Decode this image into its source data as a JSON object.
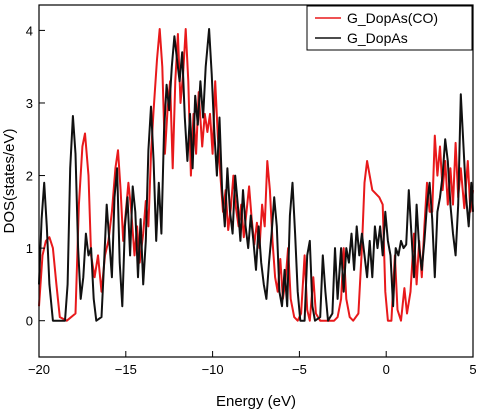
{
  "chart_data": {
    "type": "line",
    "xlabel": "Energy (eV)",
    "ylabel": "DOS(states/eV)",
    "xlim": [
      -20,
      5
    ],
    "ylim": [
      -0.5,
      4.35
    ],
    "xticks": [
      -20,
      -15,
      -10,
      -5,
      0,
      5
    ],
    "yticks": [
      0,
      1,
      2,
      3,
      4
    ],
    "xtick_labels": [
      "−20",
      "−15",
      "−10",
      "−5",
      "0",
      "5"
    ],
    "ytick_labels": [
      "0",
      "1",
      "2",
      "3",
      "4"
    ],
    "legend_position": "top-right",
    "grid": false,
    "series": [
      {
        "name": "G_DopAs(CO)",
        "color": "#e8191b",
        "points": [
          [
            -20,
            0.2
          ],
          [
            -19.8,
            0.9
          ],
          [
            -19.6,
            1.1
          ],
          [
            -19.4,
            1.15
          ],
          [
            -19.2,
            1.0
          ],
          [
            -19.0,
            0.5
          ],
          [
            -18.8,
            0.05
          ],
          [
            -18.4,
            0.0
          ],
          [
            -17.9,
            0.1
          ],
          [
            -17.7,
            1.6
          ],
          [
            -17.5,
            2.4
          ],
          [
            -17.35,
            2.58
          ],
          [
            -17.15,
            2.0
          ],
          [
            -17.0,
            0.9
          ],
          [
            -16.8,
            0.6
          ],
          [
            -16.6,
            0.9
          ],
          [
            -16.4,
            0.4
          ],
          [
            -16.2,
            0.9
          ],
          [
            -16.0,
            1.1
          ],
          [
            -15.8,
            1.5
          ],
          [
            -15.6,
            2.1
          ],
          [
            -15.45,
            2.35
          ],
          [
            -15.3,
            1.8
          ],
          [
            -15.15,
            1.1
          ],
          [
            -15.0,
            1.5
          ],
          [
            -14.85,
            1.9
          ],
          [
            -14.7,
            1.55
          ],
          [
            -14.5,
            0.9
          ],
          [
            -14.35,
            1.3
          ],
          [
            -14.2,
            0.8
          ],
          [
            -14.0,
            1.2
          ],
          [
            -13.85,
            1.65
          ],
          [
            -13.7,
            1.3
          ],
          [
            -13.55,
            2.3
          ],
          [
            -13.4,
            2.9
          ],
          [
            -13.2,
            3.6
          ],
          [
            -13.05,
            4.02
          ],
          [
            -12.9,
            3.5
          ],
          [
            -12.75,
            2.3
          ],
          [
            -12.6,
            2.9
          ],
          [
            -12.45,
            3.3
          ],
          [
            -12.3,
            2.1
          ],
          [
            -12.15,
            3.3
          ],
          [
            -12.0,
            3.95
          ],
          [
            -11.85,
            3.0
          ],
          [
            -11.7,
            3.4
          ],
          [
            -11.55,
            4.02
          ],
          [
            -11.4,
            3.3
          ],
          [
            -11.25,
            2.0
          ],
          [
            -11.1,
            2.85
          ],
          [
            -10.95,
            2.3
          ],
          [
            -10.8,
            3.15
          ],
          [
            -10.6,
            2.4
          ],
          [
            -10.45,
            2.85
          ],
          [
            -10.3,
            2.6
          ],
          [
            -10.15,
            2.85
          ],
          [
            -10.0,
            2.3
          ],
          [
            -9.85,
            3.3
          ],
          [
            -9.7,
            2.55
          ],
          [
            -9.55,
            2.0
          ],
          [
            -9.4,
            1.5
          ],
          [
            -9.25,
            1.8
          ],
          [
            -9.1,
            1.25
          ],
          [
            -8.95,
            1.55
          ],
          [
            -8.8,
            2.0
          ],
          [
            -8.65,
            1.55
          ],
          [
            -8.5,
            1.3
          ],
          [
            -8.35,
            1.6
          ],
          [
            -8.2,
            1.15
          ],
          [
            -8.05,
            1.5
          ],
          [
            -7.9,
            1.85
          ],
          [
            -7.75,
            1.4
          ],
          [
            -7.6,
            1.05
          ],
          [
            -7.45,
            1.35
          ],
          [
            -7.3,
            1.0
          ],
          [
            -7.15,
            1.6
          ],
          [
            -7.0,
            1.3
          ],
          [
            -6.85,
            2.2
          ],
          [
            -6.7,
            1.8
          ],
          [
            -6.55,
            1.1
          ],
          [
            -6.4,
            0.6
          ],
          [
            -6.25,
            0.4
          ],
          [
            -6.1,
            0.85
          ],
          [
            -5.95,
            0.3
          ],
          [
            -5.8,
            0.55
          ],
          [
            -5.65,
            1.0
          ],
          [
            -5.5,
            0.3
          ],
          [
            -5.3,
            0.05
          ],
          [
            -5.1,
            0.0
          ],
          [
            -4.9,
            0.1
          ],
          [
            -4.7,
            0.9
          ],
          [
            -4.55,
            0.15
          ],
          [
            -4.4,
            0.0
          ],
          [
            -4.2,
            0.6
          ],
          [
            -4.05,
            0.1
          ],
          [
            -3.8,
            0.0
          ],
          [
            -3.0,
            0.0
          ],
          [
            -2.8,
            0.05
          ],
          [
            -2.6,
            0.3
          ],
          [
            -2.45,
            1.0
          ],
          [
            -2.3,
            0.3
          ],
          [
            -2.1,
            0.05
          ],
          [
            -1.9,
            0.0
          ],
          [
            -1.6,
            0.1
          ],
          [
            -1.4,
            1.0
          ],
          [
            -1.25,
            1.9
          ],
          [
            -1.1,
            2.2
          ],
          [
            -0.95,
            2.0
          ],
          [
            -0.8,
            1.8
          ],
          [
            -0.6,
            1.75
          ],
          [
            -0.4,
            1.7
          ],
          [
            -0.2,
            1.6
          ],
          [
            -0.05,
            0.4
          ],
          [
            0.1,
            0.0
          ],
          [
            0.3,
            0.0
          ],
          [
            0.5,
            0.9
          ],
          [
            0.65,
            0.15
          ],
          [
            0.85,
            0.0
          ],
          [
            1.05,
            0.45
          ],
          [
            1.2,
            0.1
          ],
          [
            1.4,
            0.4
          ],
          [
            1.6,
            1.2
          ],
          [
            1.75,
            0.5
          ],
          [
            1.9,
            1.1
          ],
          [
            2.05,
            0.6
          ],
          [
            2.2,
            1.3
          ],
          [
            2.35,
            1.9
          ],
          [
            2.5,
            1.5
          ],
          [
            2.65,
            1.5
          ],
          [
            2.8,
            2.55
          ],
          [
            2.95,
            2.0
          ],
          [
            3.1,
            2.4
          ],
          [
            3.25,
            1.8
          ],
          [
            3.4,
            2.2
          ],
          [
            3.55,
            1.6
          ],
          [
            3.7,
            2.1
          ],
          [
            3.85,
            1.6
          ],
          [
            4.0,
            2.45
          ],
          [
            4.15,
            1.7
          ],
          [
            4.3,
            2.1
          ],
          [
            4.5,
            1.55
          ],
          [
            4.7,
            2.2
          ],
          [
            4.85,
            1.5
          ],
          [
            5.0,
            1.8
          ]
        ]
      },
      {
        "name": "G_DopAs",
        "color": "#111111",
        "points": [
          [
            -20,
            0.5
          ],
          [
            -19.85,
            1.4
          ],
          [
            -19.7,
            1.9
          ],
          [
            -19.55,
            1.3
          ],
          [
            -19.4,
            0.5
          ],
          [
            -19.2,
            0.0
          ],
          [
            -18.5,
            0.0
          ],
          [
            -18.35,
            0.5
          ],
          [
            -18.2,
            2.1
          ],
          [
            -18.05,
            2.82
          ],
          [
            -17.9,
            2.3
          ],
          [
            -17.75,
            1.0
          ],
          [
            -17.6,
            0.3
          ],
          [
            -17.45,
            0.6
          ],
          [
            -17.3,
            1.2
          ],
          [
            -17.15,
            0.9
          ],
          [
            -17.0,
            1.0
          ],
          [
            -16.85,
            0.3
          ],
          [
            -16.7,
            0.0
          ],
          [
            -16.4,
            0.05
          ],
          [
            -16.25,
            0.8
          ],
          [
            -16.1,
            1.6
          ],
          [
            -15.95,
            1.1
          ],
          [
            -15.8,
            0.6
          ],
          [
            -15.65,
            1.7
          ],
          [
            -15.5,
            2.1
          ],
          [
            -15.35,
            0.8
          ],
          [
            -15.2,
            0.2
          ],
          [
            -15.05,
            1.3
          ],
          [
            -14.9,
            1.7
          ],
          [
            -14.75,
            0.9
          ],
          [
            -14.6,
            1.85
          ],
          [
            -14.45,
            1.5
          ],
          [
            -14.3,
            0.6
          ],
          [
            -14.15,
            1.4
          ],
          [
            -14.0,
            0.5
          ],
          [
            -13.85,
            1.1
          ],
          [
            -13.7,
            2.35
          ],
          [
            -13.55,
            2.95
          ],
          [
            -13.4,
            2.2
          ],
          [
            -13.25,
            1.1
          ],
          [
            -13.1,
            1.9
          ],
          [
            -12.95,
            1.2
          ],
          [
            -12.8,
            2.6
          ],
          [
            -12.65,
            3.25
          ],
          [
            -12.5,
            2.9
          ],
          [
            -12.35,
            3.5
          ],
          [
            -12.2,
            3.92
          ],
          [
            -12.05,
            3.6
          ],
          [
            -11.9,
            3.3
          ],
          [
            -11.75,
            3.7
          ],
          [
            -11.6,
            2.8
          ],
          [
            -11.45,
            2.2
          ],
          [
            -11.3,
            2.85
          ],
          [
            -11.15,
            2.1
          ],
          [
            -11.0,
            3.1
          ],
          [
            -10.85,
            2.7
          ],
          [
            -10.7,
            3.3
          ],
          [
            -10.55,
            2.8
          ],
          [
            -10.4,
            3.5
          ],
          [
            -10.2,
            4.02
          ],
          [
            -10.05,
            3.4
          ],
          [
            -9.9,
            2.6
          ],
          [
            -9.75,
            2.0
          ],
          [
            -9.6,
            2.8
          ],
          [
            -9.45,
            1.8
          ],
          [
            -9.3,
            1.3
          ],
          [
            -9.15,
            2.1
          ],
          [
            -9.0,
            1.5
          ],
          [
            -8.85,
            1.2
          ],
          [
            -8.7,
            2.0
          ],
          [
            -8.55,
            1.6
          ],
          [
            -8.4,
            1.1
          ],
          [
            -8.25,
            1.8
          ],
          [
            -8.1,
            1.3
          ],
          [
            -7.95,
            1.0
          ],
          [
            -7.8,
            1.45
          ],
          [
            -7.65,
            1.1
          ],
          [
            -7.5,
            0.7
          ],
          [
            -7.35,
            1.3
          ],
          [
            -7.2,
            0.8
          ],
          [
            -7.05,
            0.5
          ],
          [
            -6.9,
            0.3
          ],
          [
            -6.75,
            0.8
          ],
          [
            -6.6,
            1.2
          ],
          [
            -6.45,
            1.7
          ],
          [
            -6.3,
            1.3
          ],
          [
            -6.15,
            0.4
          ],
          [
            -6.0,
            0.2
          ],
          [
            -5.85,
            0.7
          ],
          [
            -5.7,
            0.2
          ],
          [
            -5.55,
            1.45
          ],
          [
            -5.4,
            1.9
          ],
          [
            -5.25,
            1.2
          ],
          [
            -5.1,
            0.4
          ],
          [
            -4.95,
            0.0
          ],
          [
            -4.7,
            0.0
          ],
          [
            -4.55,
            0.9
          ],
          [
            -4.4,
            1.1
          ],
          [
            -4.25,
            0.2
          ],
          [
            -4.1,
            0.0
          ],
          [
            -3.8,
            0.05
          ],
          [
            -3.65,
            0.9
          ],
          [
            -3.5,
            0.4
          ],
          [
            -3.35,
            0.0
          ],
          [
            -3.1,
            0.1
          ],
          [
            -2.95,
            1.0
          ],
          [
            -2.8,
            0.3
          ],
          [
            -2.6,
            1.0
          ],
          [
            -2.45,
            0.4
          ],
          [
            -2.3,
            1.0
          ],
          [
            -2.15,
            0.8
          ],
          [
            -2.0,
            1.2
          ],
          [
            -1.85,
            0.7
          ],
          [
            -1.7,
            1.3
          ],
          [
            -1.55,
            0.9
          ],
          [
            -1.4,
            1.2
          ],
          [
            -1.25,
            0.9
          ],
          [
            -1.1,
            0.6
          ],
          [
            -0.95,
            1.1
          ],
          [
            -0.8,
            0.6
          ],
          [
            -0.65,
            1.3
          ],
          [
            -0.5,
            1.0
          ],
          [
            -0.35,
            1.3
          ],
          [
            -0.2,
            0.9
          ],
          [
            -0.05,
            1.5
          ],
          [
            0.1,
            1.1
          ],
          [
            0.25,
            0.9
          ],
          [
            0.4,
            0.2
          ],
          [
            0.55,
            1.0
          ],
          [
            0.7,
            0.9
          ],
          [
            0.85,
            1.1
          ],
          [
            1.0,
            1.0
          ],
          [
            1.15,
            1.05
          ],
          [
            1.3,
            1.8
          ],
          [
            1.45,
            1.2
          ],
          [
            1.6,
            0.6
          ],
          [
            1.75,
            1.6
          ],
          [
            1.9,
            1.0
          ],
          [
            2.05,
            0.7
          ],
          [
            2.2,
            1.1
          ],
          [
            2.35,
            1.6
          ],
          [
            2.5,
            1.9
          ],
          [
            2.65,
            1.4
          ],
          [
            2.8,
            0.6
          ],
          [
            2.95,
            1.5
          ],
          [
            3.1,
            1.7
          ],
          [
            3.25,
            2.0
          ],
          [
            3.4,
            2.5
          ],
          [
            3.55,
            2.2
          ],
          [
            3.7,
            1.6
          ],
          [
            3.85,
            1.2
          ],
          [
            4.0,
            0.9
          ],
          [
            4.15,
            1.6
          ],
          [
            4.3,
            3.12
          ],
          [
            4.45,
            2.4
          ],
          [
            4.6,
            1.7
          ],
          [
            4.75,
            1.3
          ],
          [
            4.9,
            1.9
          ],
          [
            5.0,
            1.5
          ]
        ]
      }
    ]
  }
}
